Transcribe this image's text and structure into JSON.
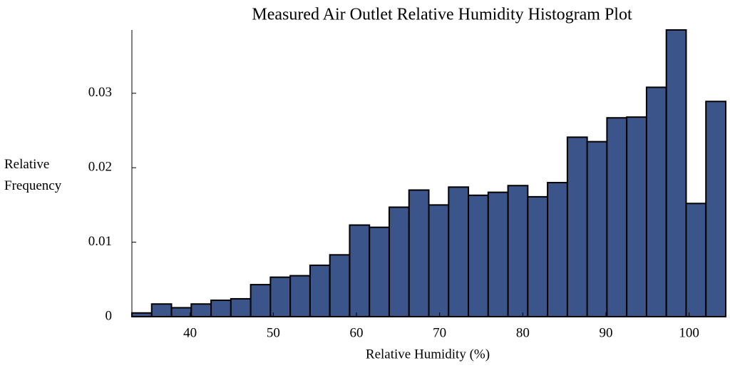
{
  "chart_data": {
    "type": "histogram",
    "title": "Measured Air Outlet Relative Humidity Histogram Plot",
    "x_label": "Relative Humidity (%)",
    "y_label": "Relative Frequency",
    "color": "#3b5489",
    "bins": [
      33,
      35.38,
      37.76,
      40.14,
      42.52,
      44.9,
      47.28,
      49.66,
      52.04,
      54.42,
      56.8,
      59.18,
      61.56,
      63.94,
      66.32,
      68.7,
      71.08,
      73.46,
      75.84,
      78.22,
      80.6,
      82.98,
      85.36,
      87.74,
      90.12,
      92.5,
      94.88,
      97.26,
      99.64,
      102.02,
      104.4
    ],
    "values": [
      0.0005,
      0.0017,
      0.0012,
      0.0017,
      0.0022,
      0.0024,
      0.0043,
      0.0053,
      0.0055,
      0.0069,
      0.0083,
      0.0123,
      0.012,
      0.0147,
      0.017,
      0.015,
      0.0174,
      0.0163,
      0.0167,
      0.0176,
      0.0161,
      0.018,
      0.0241,
      0.0235,
      0.0267,
      0.0268,
      0.0308,
      0.0385,
      0.0152,
      0.0289
    ],
    "xlim": [
      33,
      104.4
    ],
    "ylim": [
      0,
      0.0385
    ],
    "xticks": [
      40,
      50,
      60,
      70,
      80,
      90,
      100
    ],
    "yticks": [
      0,
      0.01,
      0.02,
      0.03
    ]
  }
}
